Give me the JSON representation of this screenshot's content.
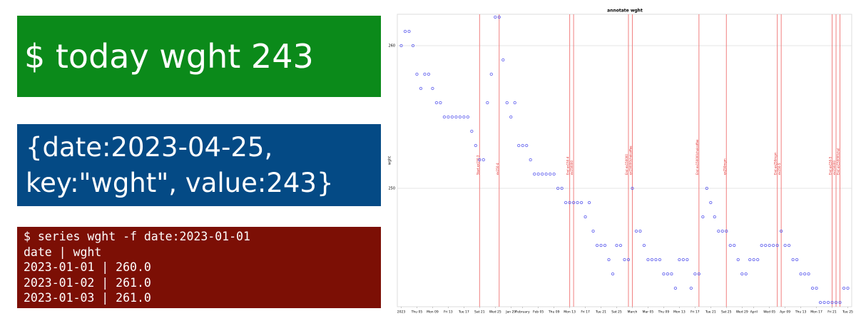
{
  "panels": {
    "command": "$ today wght 243",
    "record": [
      "{date:2023-04-25,",
      "key:\"wght\", value:243}"
    ],
    "series_output": [
      "$ series wght -f date:2023-01-01",
      "date | wght",
      "2023-01-01 | 260.0",
      "2023-01-02 | 261.0",
      "2023-01-03 | 261.0"
    ]
  },
  "chart_data": {
    "type": "scatter",
    "title": "annotate wght",
    "y_label": "wght",
    "color": "#6b6bef",
    "annotation_color": "#f08080",
    "grid": true,
    "xlim": [
      "2022-12-31",
      "2023-04-26"
    ],
    "ylim": [
      241.7,
      262.2
    ],
    "yticks": [
      250,
      260
    ],
    "xticks": [
      {
        "value": "2023-01-01",
        "label": "2023"
      },
      {
        "value": "2023-01-05",
        "label": "Thu 05"
      },
      {
        "value": "2023-01-09",
        "label": "Mon 09"
      },
      {
        "value": "2023-01-13",
        "label": "Fri 13"
      },
      {
        "value": "2023-01-17",
        "label": "Tue 17"
      },
      {
        "value": "2023-01-21",
        "label": "Sat 21"
      },
      {
        "value": "2023-01-25",
        "label": "Wed 25"
      },
      {
        "value": "2023-01-29",
        "label": "Jan 29"
      },
      {
        "value": "2023-02-01",
        "label": "February"
      },
      {
        "value": "2023-02-05",
        "label": "Feb 05"
      },
      {
        "value": "2023-02-09",
        "label": "Thu 09"
      },
      {
        "value": "2023-02-13",
        "label": "Mon 13"
      },
      {
        "value": "2023-02-17",
        "label": "Fri 17"
      },
      {
        "value": "2023-02-21",
        "label": "Tue 21"
      },
      {
        "value": "2023-02-25",
        "label": "Sat 25"
      },
      {
        "value": "2023-03-01",
        "label": "March"
      },
      {
        "value": "2023-03-05",
        "label": "Mar 05"
      },
      {
        "value": "2023-03-09",
        "label": "Thu 09"
      },
      {
        "value": "2023-03-13",
        "label": "Mon 13"
      },
      {
        "value": "2023-03-17",
        "label": "Fri 17"
      },
      {
        "value": "2023-03-21",
        "label": "Tue 21"
      },
      {
        "value": "2023-03-25",
        "label": "Sat 25"
      },
      {
        "value": "2023-03-29",
        "label": "Wed 29"
      },
      {
        "value": "2023-04-01",
        "label": "April"
      },
      {
        "value": "2023-04-05",
        "label": "Wed 05"
      },
      {
        "value": "2023-04-09",
        "label": "Apr 09"
      },
      {
        "value": "2023-04-13",
        "label": "Thu 13"
      },
      {
        "value": "2023-04-17",
        "label": "Mon 17"
      },
      {
        "value": "2023-04-21",
        "label": "Fri 21"
      },
      {
        "value": "2023-04-25",
        "label": "Tue 25"
      }
    ],
    "x": [
      "2023-01-01",
      "2023-01-02",
      "2023-01-03",
      "2023-01-04",
      "2023-01-05",
      "2023-01-06",
      "2023-01-07",
      "2023-01-08",
      "2023-01-09",
      "2023-01-10",
      "2023-01-11",
      "2023-01-12",
      "2023-01-13",
      "2023-01-14",
      "2023-01-15",
      "2023-01-16",
      "2023-01-17",
      "2023-01-18",
      "2023-01-19",
      "2023-01-20",
      "2023-01-21",
      "2023-01-22",
      "2023-01-23",
      "2023-01-24",
      "2023-01-25",
      "2023-01-26",
      "2023-01-27",
      "2023-01-28",
      "2023-01-29",
      "2023-01-30",
      "2023-01-31",
      "2023-02-01",
      "2023-02-02",
      "2023-02-03",
      "2023-02-04",
      "2023-02-05",
      "2023-02-06",
      "2023-02-07",
      "2023-02-08",
      "2023-02-09",
      "2023-02-10",
      "2023-02-11",
      "2023-02-12",
      "2023-02-13",
      "2023-02-14",
      "2023-02-15",
      "2023-02-16",
      "2023-02-17",
      "2023-02-18",
      "2023-02-19",
      "2023-02-20",
      "2023-02-21",
      "2023-02-22",
      "2023-02-23",
      "2023-02-24",
      "2023-02-25",
      "2023-02-26",
      "2023-02-27",
      "2023-02-28",
      "2023-03-01",
      "2023-03-02",
      "2023-03-03",
      "2023-03-04",
      "2023-03-05",
      "2023-03-06",
      "2023-03-07",
      "2023-03-08",
      "2023-03-09",
      "2023-03-10",
      "2023-03-11",
      "2023-03-12",
      "2023-03-13",
      "2023-03-14",
      "2023-03-15",
      "2023-03-16",
      "2023-03-17",
      "2023-03-18",
      "2023-03-19",
      "2023-03-20",
      "2023-03-21",
      "2023-03-22",
      "2023-03-23",
      "2023-03-24",
      "2023-03-25",
      "2023-03-26",
      "2023-03-27",
      "2023-03-28",
      "2023-03-29",
      "2023-03-30",
      "2023-03-31",
      "2023-04-01",
      "2023-04-02",
      "2023-04-03",
      "2023-04-04",
      "2023-04-05",
      "2023-04-06",
      "2023-04-07",
      "2023-04-08",
      "2023-04-09",
      "2023-04-10",
      "2023-04-11",
      "2023-04-12",
      "2023-04-13",
      "2023-04-14",
      "2023-04-15",
      "2023-04-16",
      "2023-04-17",
      "2023-04-18",
      "2023-04-19",
      "2023-04-20",
      "2023-04-21",
      "2023-04-22",
      "2023-04-23",
      "2023-04-24",
      "2023-04-25"
    ],
    "values": [
      260,
      261,
      261,
      260,
      258,
      257,
      258,
      258,
      257,
      256,
      256,
      255,
      255,
      255,
      255,
      255,
      255,
      255,
      254,
      253,
      252,
      252,
      256,
      258,
      262,
      262,
      259,
      256,
      255,
      256,
      253,
      253,
      253,
      252,
      251,
      251,
      251,
      251,
      251,
      251,
      250,
      250,
      249,
      249,
      249,
      249,
      249,
      248,
      249,
      247,
      246,
      246,
      246,
      245,
      244,
      246,
      246,
      245,
      245,
      250,
      247,
      247,
      246,
      245,
      245,
      245,
      245,
      244,
      244,
      244,
      243,
      245,
      245,
      245,
      243,
      244,
      244,
      248,
      250,
      249,
      248,
      247,
      247,
      247,
      246,
      246,
      245,
      244,
      244,
      245,
      245,
      245,
      246,
      246,
      246,
      246,
      246,
      247,
      246,
      246,
      245,
      245,
      244,
      244,
      244,
      243,
      243,
      242,
      242,
      242,
      242,
      242,
      242,
      243,
      243
    ],
    "annotations": [
      {
        "x": "2023-01-21",
        "label": "Start ex150-3"
      },
      {
        "x": "2023-01-26",
        "label": "ex150-4"
      },
      {
        "x": "2023-02-13",
        "label": "End ex150-4"
      },
      {
        "x": "2023-02-14",
        "label": "ex150000"
      },
      {
        "x": "2023-02-28",
        "label": "End ex150000"
      },
      {
        "x": "2023-03-01",
        "label": "ex150000cholcoffee"
      },
      {
        "x": "2023-03-18",
        "label": "End ex150000cholcoffee"
      },
      {
        "x": "2023-03-25",
        "label": "ex250mgm"
      },
      {
        "x": "2023-04-07",
        "label": "End ex250mgm"
      },
      {
        "x": "2023-04-08",
        "label": "ex150-5"
      },
      {
        "x": "2023-04-21",
        "label": "End ex150-5"
      },
      {
        "x": "2023-04-22",
        "label": "ex150000"
      },
      {
        "x": "2023-04-23",
        "label": "End ex150000chol"
      }
    ]
  }
}
